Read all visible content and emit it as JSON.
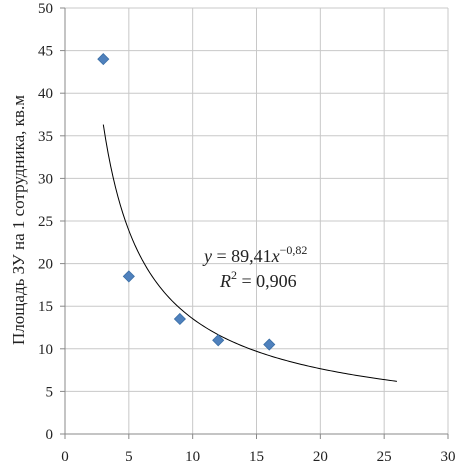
{
  "chart_data": {
    "type": "scatter",
    "title": "",
    "xlabel": "",
    "ylabel": "Площадь ЗУ на 1 сотрудника, кв.м",
    "xlim": [
      0,
      30
    ],
    "ylim": [
      0,
      50
    ],
    "x_ticks": [
      "0",
      "5",
      "10",
      "15",
      "20",
      "25",
      "30"
    ],
    "y_ticks": [
      "0",
      "5",
      "10",
      "15",
      "20",
      "25",
      "30",
      "35",
      "40",
      "45",
      "50"
    ],
    "grid": true,
    "series": [
      {
        "marker": "diamond",
        "color": "#4f81bd",
        "points": [
          {
            "x": 3,
            "y": 44
          },
          {
            "x": 5,
            "y": 18.5
          },
          {
            "x": 9,
            "y": 13.5
          },
          {
            "x": 12,
            "y": 11
          },
          {
            "x": 16,
            "y": 10.5
          }
        ]
      }
    ],
    "trendline": {
      "type": "power",
      "a": 89.41,
      "b": -0.82,
      "x_range": [
        3,
        26
      ],
      "color": "#000000"
    },
    "annotation": {
      "eq_y": "y",
      "eq_eq": " = 89,41",
      "eq_x": "x",
      "eq_exp": "−0,82",
      "r2_r": "R",
      "r2_sup": "2",
      "r2_rest": " = 0,906"
    }
  }
}
